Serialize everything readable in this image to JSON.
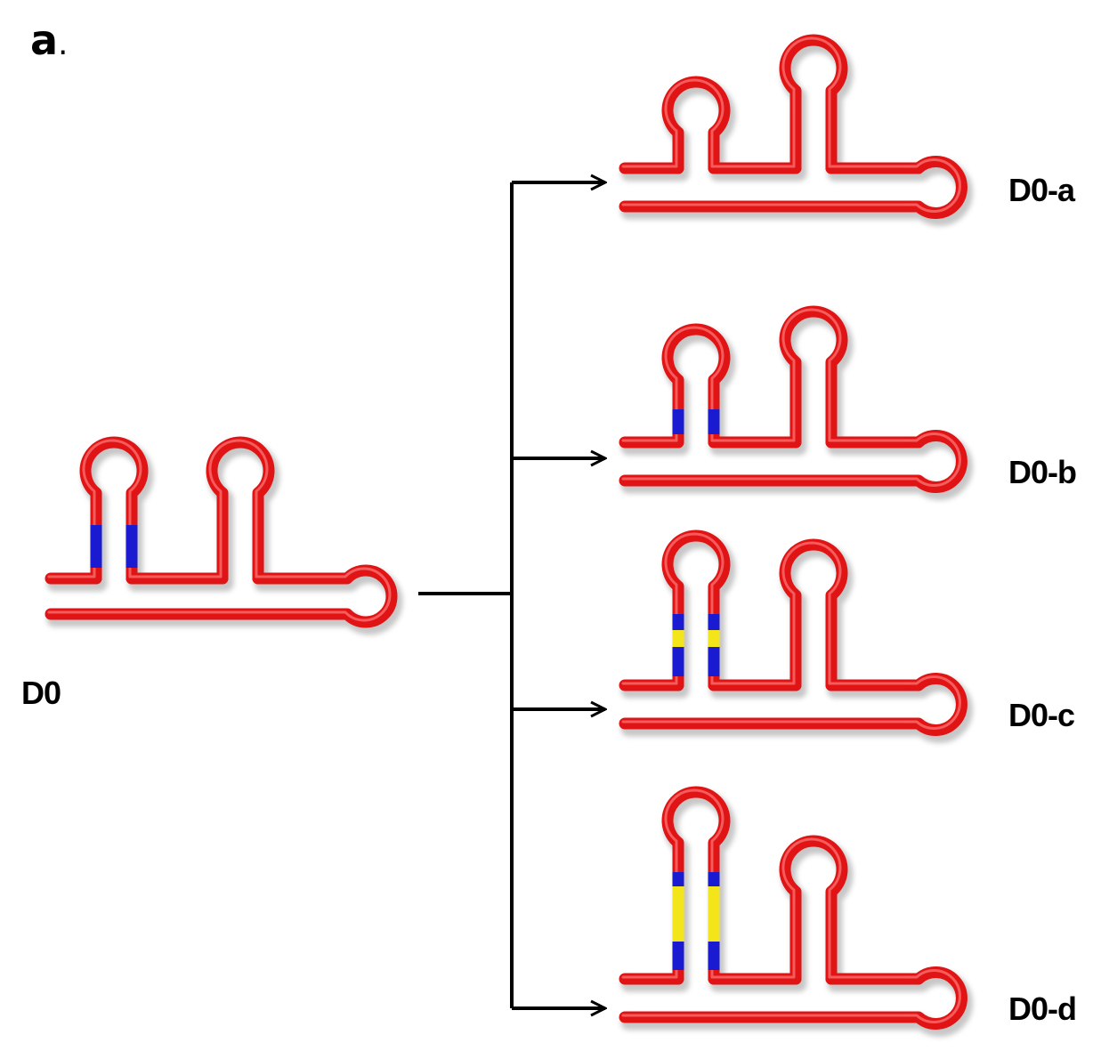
{
  "panel": {
    "letter": "a",
    "punct": "."
  },
  "source": {
    "label": "D0"
  },
  "variants": [
    {
      "label": "D0-a"
    },
    {
      "label": "D0-b"
    },
    {
      "label": "D0-c"
    },
    {
      "label": "D0-d"
    }
  ],
  "colors": {
    "strand": "#e01414",
    "strand_highlight": "#ff7a7a",
    "shadow": "#9a9a9a",
    "segment_blue": "#1a1ad0",
    "segment_yellow": "#f4e51a",
    "connector": "#000000"
  }
}
